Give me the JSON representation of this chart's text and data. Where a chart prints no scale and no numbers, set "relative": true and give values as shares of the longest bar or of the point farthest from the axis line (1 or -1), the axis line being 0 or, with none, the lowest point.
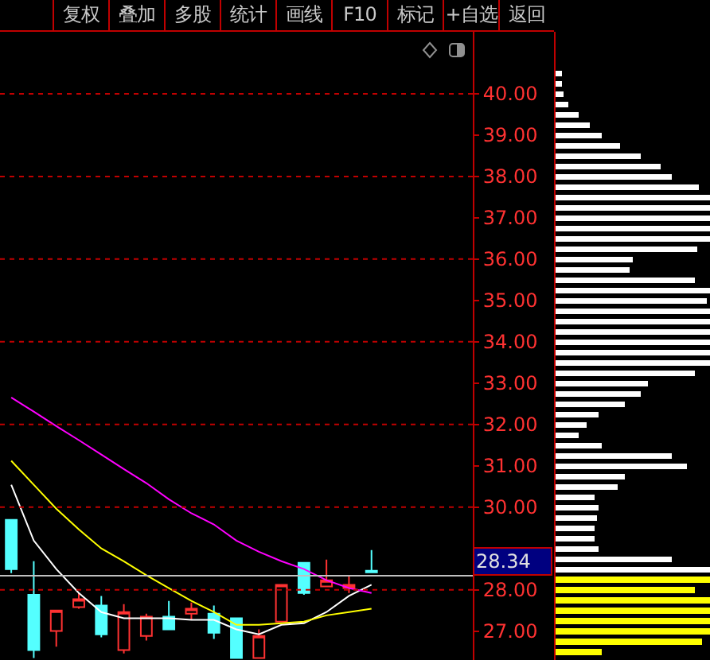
{
  "chart_data": [
    {
      "type": "candlestick",
      "annotations": [
        "复权",
        "叠加",
        "多股",
        "统计",
        "画线",
        "F10",
        "标记",
        "+自选",
        "返回"
      ],
      "categories": [
        null,
        null,
        null,
        null,
        null,
        null,
        null,
        null,
        null,
        null,
        null,
        null,
        null,
        null,
        null,
        null,
        null,
        null,
        null,
        null,
        null
      ],
      "ohlc": [
        [
          29.69,
          29.69,
          28.4,
          28.5
        ],
        [
          27.88,
          28.69,
          26.35,
          26.54
        ],
        [
          27.0,
          27.5,
          26.62,
          27.5
        ],
        [
          27.58,
          27.92,
          27.54,
          27.77
        ],
        [
          27.62,
          27.85,
          26.85,
          26.92
        ],
        [
          26.54,
          27.65,
          26.46,
          27.46
        ],
        [
          26.88,
          27.42,
          26.77,
          27.35
        ],
        [
          27.35,
          27.73,
          27.04,
          27.04
        ],
        [
          27.42,
          27.69,
          27.27,
          27.54
        ],
        [
          27.42,
          27.62,
          26.81,
          26.96
        ],
        [
          27.31,
          27.31,
          26.35,
          26.35
        ],
        [
          26.35,
          27.04,
          26.35,
          26.88
        ],
        [
          27.23,
          28.12,
          27.23,
          28.12
        ],
        [
          28.65,
          28.65,
          27.88,
          27.92
        ],
        [
          28.08,
          28.73,
          28.08,
          28.23
        ],
        [
          28.04,
          28.35,
          27.92,
          28.12
        ],
        [
          28.46,
          28.96,
          28.42,
          28.42
        ],
        null,
        null,
        null,
        null
      ],
      "colors": [
        "#54ffff",
        "#54ffff",
        "#ff3232",
        "#ff3232",
        "#54ffff",
        "#ff3232",
        "#ff3232",
        "#54ffff",
        "#ff3232",
        "#54ffff",
        "#54ffff",
        "#ff3232",
        "#ff3232",
        "#54ffff",
        "#ff3232",
        "#ff3232",
        "#54ffff",
        null,
        null,
        null,
        null
      ],
      "series": [
        {
          "type": "line",
          "color": "#ffffff",
          "values": [
            30.54,
            29.19,
            28.5,
            27.92,
            27.46,
            27.31,
            27.31,
            27.31,
            27.27,
            27.27,
            27.04,
            26.92,
            27.15,
            27.19,
            27.46,
            27.85,
            28.12,
            null,
            null,
            null,
            null
          ]
        },
        {
          "type": "line",
          "color": "#ffff00",
          "values": [
            31.12,
            30.54,
            29.96,
            29.46,
            29.0,
            28.69,
            28.35,
            28.04,
            27.73,
            27.46,
            27.15,
            27.15,
            27.19,
            27.23,
            27.38,
            27.46,
            27.54,
            null,
            null,
            null,
            null
          ]
        },
        {
          "type": "line",
          "color": "#ff00ff",
          "values": [
            32.65,
            32.31,
            31.96,
            31.62,
            31.27,
            30.92,
            30.58,
            30.19,
            29.85,
            29.58,
            29.19,
            28.92,
            28.69,
            28.5,
            28.23,
            28.04,
            27.92,
            null,
            null,
            null,
            null
          ]
        }
      ],
      "ylim": [
        26.3,
        41.5
      ],
      "yticks": [
        {
          "value": 27,
          "label": "27.00"
        },
        {
          "value": 28,
          "label": "28.00"
        },
        {
          "value": 29,
          "label": null
        },
        {
          "value": 30,
          "label": "30.00"
        },
        {
          "value": 31,
          "label": "31.00"
        },
        {
          "value": 32,
          "label": "32.00"
        },
        {
          "value": 33,
          "label": "33.00"
        },
        {
          "value": 34,
          "label": "34.00"
        },
        {
          "value": 35,
          "label": "35.00"
        },
        {
          "value": 36,
          "label": "36.00"
        },
        {
          "value": 37,
          "label": "37.00"
        },
        {
          "value": 38,
          "label": "38.00"
        },
        {
          "value": 39,
          "label": "39.00"
        },
        {
          "value": 40,
          "label": "40.00"
        }
      ],
      "grid": "y",
      "tick_labels": "y",
      "line_style": "solid",
      "ref_lines": [
        {
          "axis": "y",
          "value": 28.34,
          "label": "28.34",
          "color": "#c0c0c0"
        }
      ]
    },
    {
      "type": "bar",
      "orientation": "horizontal",
      "relative": true,
      "categories": [
        null,
        null,
        null,
        null,
        null,
        null,
        null,
        null,
        null,
        null,
        null,
        null,
        null,
        null,
        null,
        null,
        null,
        null,
        null,
        null,
        null,
        null,
        null,
        null,
        null,
        null,
        null,
        null,
        null,
        null,
        null,
        null,
        null,
        null,
        null,
        null,
        null,
        null,
        null,
        null,
        null,
        null,
        null,
        null,
        null,
        null,
        null,
        null,
        null,
        null,
        null,
        null,
        null,
        null,
        null,
        null,
        null
      ],
      "values": [
        0.04,
        0.04,
        0.05,
        0.08,
        0.15,
        0.22,
        0.3,
        0.42,
        0.55,
        0.68,
        0.75,
        0.93,
        1,
        1,
        1,
        1,
        1,
        0.92,
        0.5,
        0.48,
        0.9,
        1,
        0.98,
        1,
        1,
        1,
        1,
        1,
        1,
        0.9,
        0.6,
        0.55,
        0.45,
        0.28,
        0.2,
        0.15,
        0.3,
        0.75,
        0.85,
        0.45,
        0.4,
        0.25,
        0.28,
        0.27,
        0.25,
        0.25,
        0.28,
        0.75,
        1,
        1,
        0.9,
        1,
        1,
        1,
        1,
        0.95,
        0.3
      ],
      "colors": [
        "#ffffff",
        "#ffffff",
        "#ffffff",
        "#ffffff",
        "#ffffff",
        "#ffffff",
        "#ffffff",
        "#ffffff",
        "#ffffff",
        "#ffffff",
        "#ffffff",
        "#ffffff",
        "#ffffff",
        "#ffffff",
        "#ffffff",
        "#ffffff",
        "#ffffff",
        "#ffffff",
        "#ffffff",
        "#ffffff",
        "#ffffff",
        "#ffffff",
        "#ffffff",
        "#ffffff",
        "#ffffff",
        "#ffffff",
        "#ffffff",
        "#ffffff",
        "#ffffff",
        "#ffffff",
        "#ffffff",
        "#ffffff",
        "#ffffff",
        "#ffffff",
        "#ffffff",
        "#ffffff",
        "#ffffff",
        "#ffffff",
        "#ffffff",
        "#ffffff",
        "#ffffff",
        "#ffffff",
        "#ffffff",
        "#ffffff",
        "#ffffff",
        "#ffffff",
        "#ffffff",
        "#ffffff",
        "#ffffff",
        "#ffff00",
        "#ffff00",
        "#ffff00",
        "#ffff00",
        "#ffff00",
        "#ffff00",
        "#ffff00",
        "#ffff00"
      ]
    }
  ]
}
